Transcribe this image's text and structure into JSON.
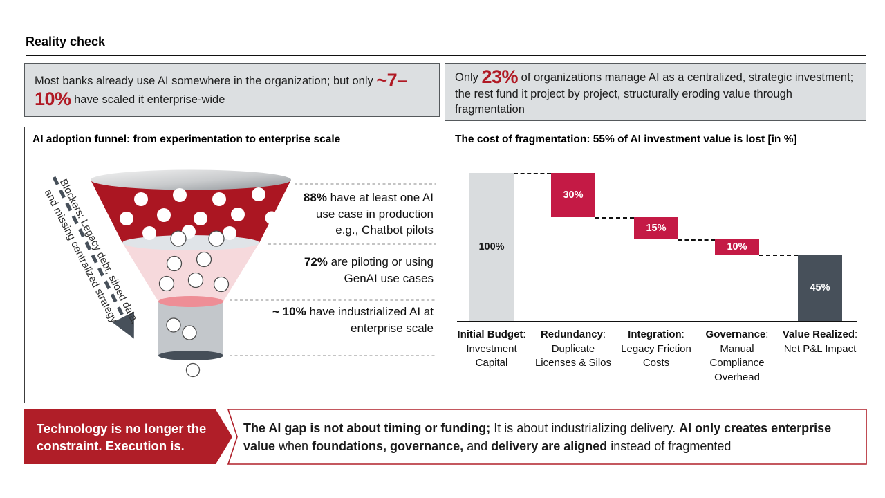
{
  "slide": {
    "title": "Reality check",
    "headers": {
      "left": {
        "segments": [
          {
            "t": "Most banks already use AI somewhere in the organization; but only "
          },
          {
            "t": "~7–10%",
            "s": "bigred"
          },
          {
            "t": " have scaled it enterprise-wide"
          }
        ]
      },
      "right": {
        "segments": [
          {
            "t": "Only "
          },
          {
            "t": "23%",
            "s": "bigred"
          },
          {
            "t": " of organizations manage AI as a centralized, strategic investment; the rest fund it project by project, structurally eroding value through fragmentation"
          }
        ]
      }
    },
    "funnel_panel": {
      "title": "AI adoption funnel: from experimentation to enterprise scale",
      "blockers": {
        "line1": "Blockers: Legacy debt, siloed data,",
        "line2": "and missing centralized strategy"
      },
      "annotations": [
        {
          "lines": [
            [
              {
                "t": "88%",
                "s": "b"
              },
              {
                "t": " have at least one AI"
              }
            ],
            [
              {
                "t": "use case in production"
              }
            ],
            [
              {
                "t": "e.g., Chatbot pilots"
              }
            ]
          ]
        },
        {
          "lines": [
            [
              {
                "t": "72%",
                "s": "b"
              },
              {
                "t": " are piloting or using"
              }
            ],
            [
              {
                "t": "GenAI use cases"
              }
            ]
          ]
        },
        {
          "lines": [
            [
              {
                "t": "~ 10%",
                "s": "b"
              },
              {
                "t": " have industrialized AI at"
              }
            ],
            [
              {
                "t": "enterprise scale"
              }
            ]
          ]
        }
      ]
    },
    "waterfall_panel": {
      "title": "The cost of fragmentation: 55% of AI investment value is lost [in %]",
      "categories": [
        {
          "b": "Initial Budget",
          "r": ": Investment Capital"
        },
        {
          "b": "Redundancy",
          "r": ": Duplicate Licenses & Silos"
        },
        {
          "b": "Integration",
          "r": ": Legacy Friction Costs"
        },
        {
          "b": "Governance",
          "r": ": Manual Compliance Overhead"
        },
        {
          "b": "Value Realized",
          "r": ": Net P&L Impact"
        }
      ]
    },
    "banner": {
      "callout_line1": "Technology is no longer the",
      "callout_line2": "constraint. Execution is.",
      "message_segments": [
        {
          "t": "The AI gap is not about timing or funding;",
          "s": "b"
        },
        {
          "t": " It is about industrializing delivery. "
        },
        {
          "t": "AI only creates enterprise value",
          "s": "b"
        },
        {
          "t": " when "
        },
        {
          "t": "foundations, governance,",
          "s": "b"
        },
        {
          "t": " and "
        },
        {
          "t": "delivery are aligned",
          "s": "b"
        },
        {
          "t": " instead of fragmented"
        }
      ]
    },
    "colors": {
      "accent_red_text": "#b01924",
      "waterfall_loss_red": "#c41a45",
      "waterfall_start_gray": "#d9dcde",
      "waterfall_end_slate": "#47505a",
      "funnel_red": "#ab1622",
      "funnel_pink": "#f6d9dc",
      "banner_red": "#b01e28",
      "header_box_gray": "#dcdfe1"
    }
  },
  "chart_data": [
    {
      "type": "table",
      "subtype": "funnel-diagram",
      "title": "AI adoption funnel: from experimentation to enterprise scale",
      "stages": [
        {
          "value": "88%",
          "label": "88% have at least one AI use case in production e.g., Chatbot pilots"
        },
        {
          "value": "72%",
          "label": "72% are piloting or using GenAI use cases"
        },
        {
          "value": "~ 10%",
          "label": "~ 10% have industrialized AI at enterprise scale"
        }
      ],
      "annotation": "Blockers: Legacy debt, siloed data, and missing centralized strategy"
    },
    {
      "type": "bar",
      "subtype": "waterfall",
      "title": "The cost of fragmentation: 55% of AI investment value is lost [in %]",
      "categories": [
        "Initial Budget: Investment Capital",
        "Redundancy: Duplicate Licenses & Silos",
        "Integration: Legacy Friction Costs",
        "Governance: Manual Compliance Overhead",
        "Value Realized: Net P&L Impact"
      ],
      "values": [
        100,
        -30,
        -15,
        -10,
        45
      ],
      "bar_labels": [
        "100%",
        "30%",
        "15%",
        "10%",
        "45%"
      ],
      "ylabel": "",
      "xlabel": "",
      "ylim": [
        0,
        100
      ],
      "grid": false,
      "legend": false
    }
  ]
}
